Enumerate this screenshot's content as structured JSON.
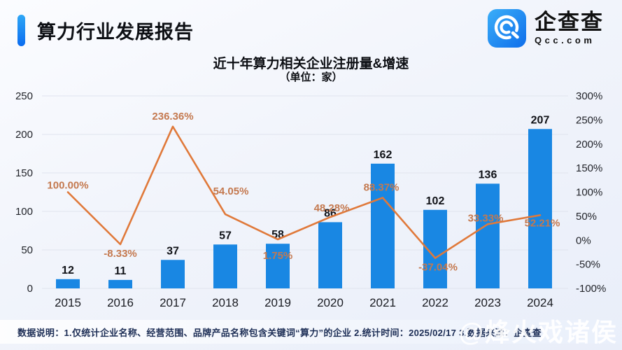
{
  "header": {
    "title": "算力行业发展报告"
  },
  "brand": {
    "name": "企查查",
    "domain": "Qcc.com",
    "icon_color_top": "#3aaef8",
    "icon_color_bottom": "#0f6eeb"
  },
  "footer": {
    "note": "数据说明：1.仅统计企业名称、经营范围、品牌产品名称包含关键词“算力”的企业  2.统计时间：2025/02/17  3.数据来源：企查查",
    "watermark": "@烽火戏诸侯"
  },
  "chart_data": {
    "type": "bar",
    "title": "近十年算力相关企业注册量&增速",
    "subtitle": "（单位：家）",
    "categories": [
      "2015",
      "2016",
      "2017",
      "2018",
      "2019",
      "2020",
      "2021",
      "2022",
      "2023",
      "2024"
    ],
    "series": [
      {
        "name": "注册量",
        "type": "bar",
        "color": "#1987e3",
        "values": [
          12,
          11,
          37,
          57,
          58,
          86,
          162,
          102,
          136,
          207
        ],
        "value_labels": [
          "12",
          "11",
          "37",
          "57",
          "58",
          "86",
          "162",
          "102",
          "136",
          "207"
        ]
      },
      {
        "name": "增速",
        "type": "line",
        "color": "#e0793a",
        "label_color": "#c4794f",
        "values": [
          100.0,
          -8.33,
          236.36,
          54.05,
          1.75,
          48.28,
          88.37,
          -37.04,
          33.33,
          52.21
        ],
        "labels": [
          "100.00%",
          "-8.33%",
          "236.36%",
          "54.05%",
          "1.75%",
          "48.28%",
          "88.37%",
          "-37.04%",
          "33.33%",
          "52.21%"
        ],
        "label_offsets": [
          [
            0,
            -5
          ],
          [
            0,
            18
          ],
          [
            0,
            -10
          ],
          [
            8,
            -28
          ],
          [
            0,
            28
          ],
          [
            2,
            -8
          ],
          [
            -2,
            -10
          ],
          [
            4,
            18
          ],
          [
            -3,
            -4
          ],
          [
            3,
            16
          ]
        ]
      }
    ],
    "y_left": {
      "ticks": [
        "250",
        "200",
        "150",
        "100",
        "50",
        "0"
      ],
      "min": 0,
      "max": 250
    },
    "y_right": {
      "ticks": [
        "300%",
        "250%",
        "200%",
        "150%",
        "100%",
        "50%",
        "0%",
        "-50%",
        "-100%"
      ],
      "min": -100,
      "max": 300
    },
    "grid": true,
    "legend": "none"
  }
}
